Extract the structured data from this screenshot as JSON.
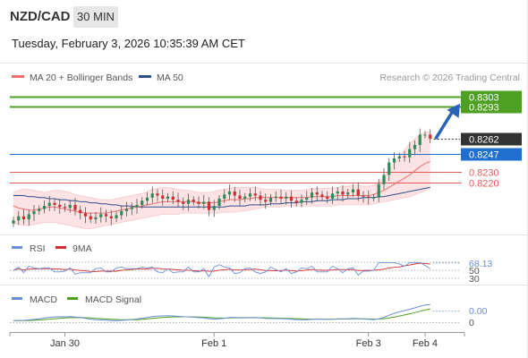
{
  "header": {
    "symbol": "NZD/CAD",
    "timeframe": "30 MIN",
    "datetime": "Tuesday, February 3, 2026 10:35:39 AM CET"
  },
  "legend": {
    "ma20_label": "MA 20 + Bollinger Bands",
    "ma50_label": "MA 50",
    "credit": "Research © 2026 Trading Central"
  },
  "colors": {
    "ma20": "#f07070",
    "ma50": "#2a4f8f",
    "bollinger_fill": "#fde3e3",
    "bullish_candle": "#2e8b57",
    "bearish_candle": "#d02c2c",
    "resistance": "#4ea022",
    "support": "#e05a5a",
    "pivot": "#1f6fd0",
    "last_price": "#333333",
    "forecast_arrow": "#2a62b8",
    "rsi": "#6b8fd6",
    "rsi_ma": "#d02c2c",
    "macd": "#6b8fd6",
    "macd_signal": "#4ea022"
  },
  "chart_data": [
    {
      "type": "line",
      "panel": "price",
      "ylim": [
        0.8178,
        0.8314
      ],
      "x_ticks": [
        {
          "label": "Jan 30",
          "i": 10
        },
        {
          "label": "Feb 1",
          "i": 39
        },
        {
          "label": "Feb 3",
          "i": 69
        },
        {
          "label": "Feb 4",
          "i": 80
        }
      ],
      "levels": [
        {
          "value": 0.8303,
          "label": "0.8303",
          "kind": "resistance"
        },
        {
          "value": 0.8293,
          "label": "0.8293",
          "kind": "resistance"
        },
        {
          "value": 0.8262,
          "label": "0.8262",
          "kind": "last_price"
        },
        {
          "value": 0.8247,
          "label": "0.8247",
          "kind": "pivot"
        },
        {
          "value": 0.823,
          "label": "0.8230",
          "kind": "support"
        },
        {
          "value": 0.822,
          "label": "0.8220",
          "kind": "support"
        }
      ],
      "forecast_arrow": {
        "from": 0.8262,
        "to": 0.8296
      },
      "close": [
        0.8183,
        0.8187,
        0.8184,
        0.8189,
        0.8192,
        0.8194,
        0.8197,
        0.82,
        0.8198,
        0.8196,
        0.8195,
        0.8198,
        0.8193,
        0.819,
        0.8187,
        0.8184,
        0.8186,
        0.8189,
        0.8187,
        0.8185,
        0.8188,
        0.8192,
        0.8194,
        0.8196,
        0.8198,
        0.8202,
        0.8205,
        0.8209,
        0.8207,
        0.8204,
        0.8206,
        0.8203,
        0.8201,
        0.8199,
        0.8203,
        0.8201,
        0.8199,
        0.8201,
        0.8193,
        0.8197,
        0.8204,
        0.8208,
        0.8211,
        0.8207,
        0.8204,
        0.8206,
        0.8209,
        0.8207,
        0.8203,
        0.8201,
        0.8205,
        0.8206,
        0.8204,
        0.8206,
        0.8202,
        0.82,
        0.8203,
        0.8205,
        0.821,
        0.8208,
        0.8206,
        0.8204,
        0.8209,
        0.8211,
        0.8208,
        0.821,
        0.8213,
        0.8207,
        0.8206,
        0.8205,
        0.8205,
        0.8218,
        0.8227,
        0.8239,
        0.8243,
        0.8245,
        0.8244,
        0.8252,
        0.8256,
        0.8266,
        0.8266,
        0.8262
      ],
      "ma20": [
        0.8197,
        0.8195,
        0.8194,
        0.8193,
        0.8193,
        0.8194,
        0.8195,
        0.8196,
        0.8196,
        0.8195,
        0.8194,
        0.8193,
        0.8192,
        0.8191,
        0.819,
        0.819,
        0.819,
        0.819,
        0.819,
        0.8191,
        0.8192,
        0.8193,
        0.8194,
        0.8195,
        0.8196,
        0.8197,
        0.8198,
        0.8199,
        0.82,
        0.8201,
        0.8201,
        0.8201,
        0.8201,
        0.8201,
        0.8201,
        0.8201,
        0.82,
        0.82,
        0.82,
        0.82,
        0.8201,
        0.8202,
        0.8203,
        0.8203,
        0.8203,
        0.8204,
        0.8204,
        0.8205,
        0.8205,
        0.8205,
        0.8205,
        0.8205,
        0.8205,
        0.8205,
        0.8205,
        0.8205,
        0.8205,
        0.8205,
        0.8206,
        0.8206,
        0.8206,
        0.8206,
        0.8206,
        0.8207,
        0.8207,
        0.8207,
        0.8207,
        0.8207,
        0.8207,
        0.8207,
        0.8208,
        0.821,
        0.8212,
        0.8215,
        0.8218,
        0.8221,
        0.8224,
        0.8227,
        0.8231,
        0.8235,
        0.8238,
        0.824
      ],
      "bb_upper": [
        0.821,
        0.8212,
        0.8213,
        0.8213,
        0.8212,
        0.8211,
        0.821,
        0.8211,
        0.8212,
        0.8212,
        0.8211,
        0.821,
        0.8208,
        0.8207,
        0.8206,
        0.8205,
        0.8204,
        0.8203,
        0.8203,
        0.8203,
        0.8204,
        0.8205,
        0.8206,
        0.8207,
        0.8208,
        0.8209,
        0.8211,
        0.8213,
        0.8214,
        0.8215,
        0.8215,
        0.8214,
        0.8213,
        0.8212,
        0.8212,
        0.8211,
        0.821,
        0.821,
        0.821,
        0.8211,
        0.8212,
        0.8213,
        0.8214,
        0.8215,
        0.8215,
        0.8215,
        0.8215,
        0.8215,
        0.8214,
        0.8213,
        0.8213,
        0.8213,
        0.8213,
        0.8212,
        0.8212,
        0.8212,
        0.8212,
        0.8213,
        0.8214,
        0.8214,
        0.8214,
        0.8214,
        0.8214,
        0.8215,
        0.8216,
        0.8216,
        0.8217,
        0.8217,
        0.8216,
        0.8216,
        0.8217,
        0.822,
        0.8225,
        0.8231,
        0.8238,
        0.8245,
        0.8251,
        0.8257,
        0.8262,
        0.8266,
        0.8268,
        0.8269
      ],
      "bb_lower": [
        0.818,
        0.8179,
        0.8178,
        0.8178,
        0.8179,
        0.818,
        0.8181,
        0.8181,
        0.8181,
        0.818,
        0.8179,
        0.8178,
        0.8177,
        0.8176,
        0.8175,
        0.8175,
        0.8176,
        0.8177,
        0.8178,
        0.8179,
        0.818,
        0.8181,
        0.8182,
        0.8183,
        0.8184,
        0.8185,
        0.8186,
        0.8187,
        0.8188,
        0.8189,
        0.8189,
        0.8189,
        0.8189,
        0.819,
        0.819,
        0.819,
        0.819,
        0.819,
        0.819,
        0.819,
        0.819,
        0.8191,
        0.8191,
        0.8191,
        0.8192,
        0.8192,
        0.8193,
        0.8194,
        0.8195,
        0.8196,
        0.8196,
        0.8196,
        0.8196,
        0.8197,
        0.8197,
        0.8197,
        0.8197,
        0.8197,
        0.8197,
        0.8197,
        0.8197,
        0.8197,
        0.8197,
        0.8198,
        0.8198,
        0.8198,
        0.8198,
        0.8198,
        0.8198,
        0.8198,
        0.8199,
        0.82,
        0.8201,
        0.8202,
        0.8203,
        0.8204,
        0.8205,
        0.8206,
        0.8208,
        0.821,
        0.8212,
        0.8214
      ],
      "ma50": [
        0.8207,
        0.8207,
        0.8207,
        0.8206,
        0.8206,
        0.8205,
        0.8205,
        0.8204,
        0.8204,
        0.8203,
        0.8203,
        0.8202,
        0.8202,
        0.8201,
        0.8201,
        0.82,
        0.82,
        0.8199,
        0.8199,
        0.8198,
        0.8198,
        0.8197,
        0.8197,
        0.8197,
        0.8196,
        0.8196,
        0.8196,
        0.8196,
        0.8196,
        0.8196,
        0.8196,
        0.8196,
        0.8196,
        0.8196,
        0.8196,
        0.8196,
        0.8196,
        0.8196,
        0.8196,
        0.8196,
        0.8196,
        0.8196,
        0.8197,
        0.8197,
        0.8197,
        0.8197,
        0.8198,
        0.8198,
        0.8198,
        0.8198,
        0.8199,
        0.8199,
        0.8199,
        0.82,
        0.82,
        0.82,
        0.8201,
        0.8201,
        0.8201,
        0.8202,
        0.8202,
        0.8202,
        0.8203,
        0.8203,
        0.8203,
        0.8204,
        0.8204,
        0.8204,
        0.8205,
        0.8205,
        0.8205,
        0.8206,
        0.8206,
        0.8207,
        0.8208,
        0.8209,
        0.821,
        0.8211,
        0.8212,
        0.8213,
        0.8214,
        0.8215
      ]
    },
    {
      "type": "line",
      "panel": "rsi",
      "series_names": [
        "RSI",
        "9MA"
      ],
      "ylim": [
        30,
        70
      ],
      "tick_labels": [
        "68.13",
        "50",
        "30"
      ],
      "tick_values": [
        68.13,
        50,
        30
      ],
      "last_value": "68.13"
    },
    {
      "type": "line",
      "panel": "macd",
      "series_names": [
        "MACD",
        "MACD Signal"
      ],
      "tick_labels": [
        "0.00",
        "0"
      ],
      "last_value": "0.00"
    }
  ]
}
